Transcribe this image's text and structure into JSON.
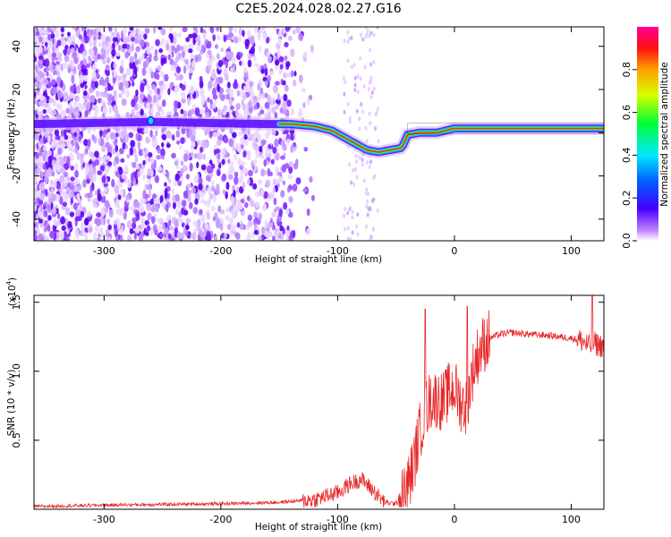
{
  "title": "C2E5.2024.028.02.27.G16",
  "chart_data": [
    {
      "type": "heatmap",
      "name": "spectrogram",
      "xlabel": "Height of straight line (km)",
      "ylabel": "Frequency (Hz)",
      "xlim": [
        -360,
        128
      ],
      "ylim": [
        -50,
        49
      ],
      "xticks": [
        -300,
        -200,
        -100,
        0,
        100
      ],
      "yticks": [
        -40,
        -20,
        0,
        20,
        40
      ],
      "ridge": {
        "x": [
          -360,
          -260,
          -160,
          -140,
          -120,
          -105,
          -95,
          -85,
          -75,
          -65,
          -55,
          -45,
          -40,
          -30,
          -15,
          0,
          20,
          60,
          90,
          110,
          128
        ],
        "y": [
          4,
          5,
          4,
          4,
          3,
          1,
          -2,
          -5,
          -8,
          -9,
          -8,
          -7,
          -1,
          0,
          0,
          2,
          2,
          2,
          2,
          2,
          2
        ]
      },
      "colorbar": {
        "label": "Normalized spectral amplitude",
        "range": [
          0.0,
          1.0
        ],
        "ticks": [
          0.0,
          0.2,
          0.4,
          0.6,
          0.8
        ]
      }
    },
    {
      "type": "line",
      "name": "snr",
      "xlabel": "Height of straight line (km)",
      "ylabel": "SNR (10 * v/v)",
      "yscale_label_prefix": "(x10",
      "yscale_label_exp": "4",
      "yscale_label_suffix": ")",
      "xlim": [
        -360,
        128
      ],
      "ylim": [
        0.0,
        1.55
      ],
      "xticks": [
        -300,
        -200,
        -100,
        0,
        100
      ],
      "yticks": [
        0.5,
        1.0,
        1.5
      ],
      "yticklabels": [
        "0.5",
        "1.0",
        "1.5"
      ],
      "color": "#e82828",
      "envelope": {
        "x": [
          -360,
          -300,
          -200,
          -150,
          -120,
          -100,
          -90,
          -80,
          -70,
          -60,
          -50,
          -45,
          -40,
          -35,
          -30,
          -25,
          -20,
          -15,
          -10,
          -5,
          0,
          5,
          10,
          15,
          20,
          25,
          30,
          40,
          50,
          60,
          80,
          100,
          110,
          115,
          120,
          128
        ],
        "y": [
          0.02,
          0.03,
          0.04,
          0.05,
          0.07,
          0.12,
          0.18,
          0.22,
          0.14,
          0.05,
          0.04,
          0.08,
          0.18,
          0.32,
          0.55,
          0.72,
          0.8,
          0.8,
          0.78,
          0.85,
          0.88,
          0.78,
          0.74,
          0.98,
          1.12,
          1.2,
          1.24,
          1.27,
          1.28,
          1.27,
          1.26,
          1.24,
          1.22,
          1.18,
          1.2,
          1.18
        ]
      },
      "spikes": [
        {
          "x": -25,
          "y": 1.45
        },
        {
          "x": 11,
          "y": 1.47
        },
        {
          "x": 118,
          "y": 1.58
        }
      ]
    }
  ]
}
